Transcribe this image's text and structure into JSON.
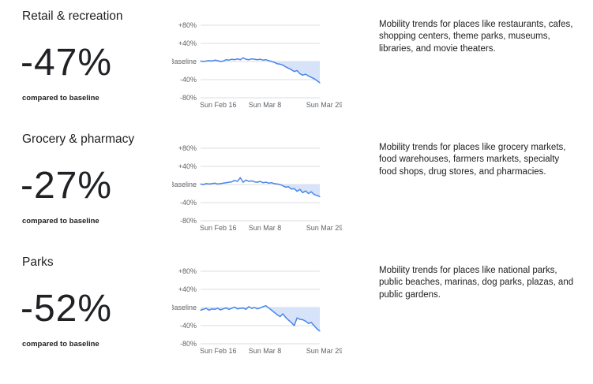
{
  "sections": [
    {
      "title": "Retail & recreation",
      "value": "-47%",
      "compare_label": "compared to baseline",
      "description": "Mobility trends for places like restaurants, cafes, shopping centers, theme parks, museums, libraries, and movie theaters."
    },
    {
      "title": "Grocery & pharmacy",
      "value": "-27%",
      "compare_label": "compared to baseline",
      "description": "Mobility trends for places like grocery markets, food warehouses, farmers markets, specialty food shops, drug stores, and pharmacies."
    },
    {
      "title": "Parks",
      "value": "-52%",
      "compare_label": "compared to baseline",
      "description": "Mobility trends for places like national parks, public beaches, marinas, dog parks, plazas, and public gardens."
    }
  ],
  "colors": {
    "line": "#4a86e8",
    "fill": "#d6e3f8",
    "grid": "#dadce0",
    "text": "#202124",
    "tick": "#5f6368"
  },
  "chart_data": [
    {
      "type": "line",
      "title": "",
      "x_tick_labels": [
        "Sun Feb 16",
        "Sun Mar 8",
        "Sun Mar 29"
      ],
      "y_tick_labels": [
        "+80%",
        "+40%",
        "Baseline",
        "-40%",
        "-80%"
      ],
      "y_ticks": [
        80,
        40,
        0,
        -40,
        -80
      ],
      "ylim": [
        -80,
        80
      ],
      "x": [
        "Feb 16",
        "Feb 17",
        "Feb 18",
        "Feb 19",
        "Feb 20",
        "Feb 21",
        "Feb 22",
        "Feb 23",
        "Feb 24",
        "Feb 25",
        "Feb 26",
        "Feb 27",
        "Feb 28",
        "Feb 29",
        "Mar 1",
        "Mar 2",
        "Mar 3",
        "Mar 4",
        "Mar 5",
        "Mar 6",
        "Mar 7",
        "Mar 8",
        "Mar 9",
        "Mar 10",
        "Mar 11",
        "Mar 12",
        "Mar 13",
        "Mar 14",
        "Mar 15",
        "Mar 16",
        "Mar 17",
        "Mar 18",
        "Mar 19",
        "Mar 20",
        "Mar 21",
        "Mar 22",
        "Mar 23",
        "Mar 24",
        "Mar 25",
        "Mar 26",
        "Mar 27",
        "Mar 28",
        "Mar 29"
      ],
      "values": [
        1,
        0,
        1,
        2,
        1,
        3,
        2,
        0,
        1,
        4,
        3,
        5,
        4,
        6,
        4,
        8,
        5,
        4,
        6,
        5,
        4,
        5,
        3,
        4,
        2,
        0,
        -2,
        -5,
        -6,
        -8,
        -12,
        -15,
        -18,
        -22,
        -20,
        -27,
        -30,
        -28,
        -32,
        -35,
        -38,
        -42,
        -47
      ],
      "fill_below_baseline": true,
      "grid": true
    },
    {
      "type": "line",
      "title": "",
      "x_tick_labels": [
        "Sun Feb 16",
        "Sun Mar 8",
        "Sun Mar 29"
      ],
      "y_tick_labels": [
        "+80%",
        "+40%",
        "Baseline",
        "-40%",
        "-80%"
      ],
      "y_ticks": [
        80,
        40,
        0,
        -40,
        -80
      ],
      "ylim": [
        -80,
        80
      ],
      "x": [
        "Feb 16",
        "Feb 17",
        "Feb 18",
        "Feb 19",
        "Feb 20",
        "Feb 21",
        "Feb 22",
        "Feb 23",
        "Feb 24",
        "Feb 25",
        "Feb 26",
        "Feb 27",
        "Feb 28",
        "Feb 29",
        "Mar 1",
        "Mar 2",
        "Mar 3",
        "Mar 4",
        "Mar 5",
        "Mar 6",
        "Mar 7",
        "Mar 8",
        "Mar 9",
        "Mar 10",
        "Mar 11",
        "Mar 12",
        "Mar 13",
        "Mar 14",
        "Mar 15",
        "Mar 16",
        "Mar 17",
        "Mar 18",
        "Mar 19",
        "Mar 20",
        "Mar 21",
        "Mar 22",
        "Mar 23",
        "Mar 24",
        "Mar 25",
        "Mar 26",
        "Mar 27",
        "Mar 28",
        "Mar 29"
      ],
      "values": [
        1,
        0,
        2,
        1,
        2,
        3,
        1,
        2,
        3,
        4,
        5,
        6,
        9,
        7,
        15,
        5,
        10,
        7,
        8,
        6,
        5,
        7,
        4,
        5,
        3,
        4,
        2,
        1,
        0,
        -3,
        -6,
        -5,
        -10,
        -9,
        -15,
        -11,
        -18,
        -14,
        -20,
        -16,
        -22,
        -24,
        -27
      ],
      "fill_below_baseline": true,
      "grid": true
    },
    {
      "type": "line",
      "title": "",
      "x_tick_labels": [
        "Sun Feb 16",
        "Sun Mar 8",
        "Sun Mar 29"
      ],
      "y_tick_labels": [
        "+80%",
        "+40%",
        "Baseline",
        "-40%",
        "-80%"
      ],
      "y_ticks": [
        80,
        40,
        0,
        -40,
        -80
      ],
      "ylim": [
        -80,
        80
      ],
      "x": [
        "Feb 16",
        "Feb 17",
        "Feb 18",
        "Feb 19",
        "Feb 20",
        "Feb 21",
        "Feb 22",
        "Feb 23",
        "Feb 24",
        "Feb 25",
        "Feb 26",
        "Feb 27",
        "Feb 28",
        "Feb 29",
        "Mar 1",
        "Mar 2",
        "Mar 3",
        "Mar 4",
        "Mar 5",
        "Mar 6",
        "Mar 7",
        "Mar 8",
        "Mar 9",
        "Mar 10",
        "Mar 11",
        "Mar 12",
        "Mar 13",
        "Mar 14",
        "Mar 15",
        "Mar 16",
        "Mar 17",
        "Mar 18",
        "Mar 19",
        "Mar 20",
        "Mar 21",
        "Mar 22",
        "Mar 23",
        "Mar 24",
        "Mar 25",
        "Mar 26",
        "Mar 27",
        "Mar 28",
        "Mar 29"
      ],
      "values": [
        -6,
        -4,
        -2,
        -6,
        -3,
        -4,
        -2,
        -5,
        -3,
        -1,
        -4,
        -2,
        1,
        -3,
        -2,
        -1,
        -4,
        2,
        -2,
        0,
        -3,
        -1,
        2,
        4,
        -1,
        -6,
        -11,
        -16,
        -20,
        -14,
        -22,
        -28,
        -33,
        -40,
        -23,
        -26,
        -27,
        -30,
        -35,
        -33,
        -40,
        -47,
        -52
      ],
      "fill_below_baseline": true,
      "grid": true
    }
  ]
}
